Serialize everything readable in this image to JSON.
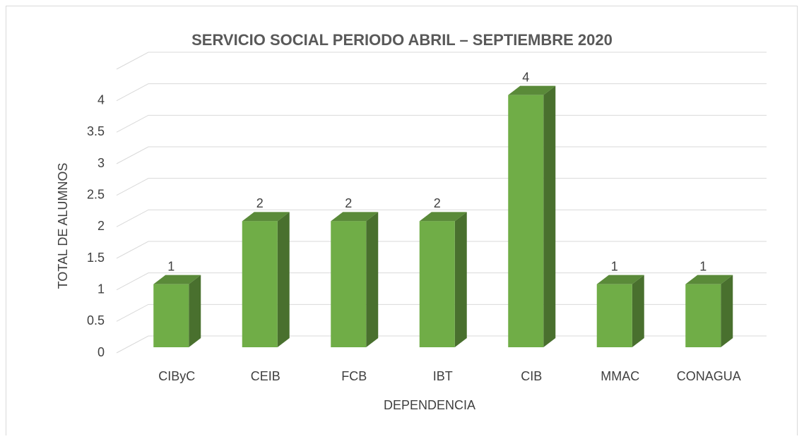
{
  "chart_data": {
    "type": "bar3d",
    "title": "SERVICIO SOCIAL PERIODO ABRIL – SEPTIEMBRE 2020",
    "x_label": "DEPENDENCIA",
    "y_label": "TOTAL DE ALUMNOS",
    "categories": [
      "CIByC",
      "CEIB",
      "FCB",
      "IBT",
      "CIB",
      "MMAC",
      "CONAGUA"
    ],
    "values": [
      1,
      2,
      2,
      2,
      4,
      1,
      1
    ],
    "color": "#70ad47",
    "ylim": [
      0,
      4.5
    ],
    "yticks": [
      0,
      0.5,
      1,
      1.5,
      2,
      2.5,
      3,
      3.5,
      4
    ],
    "grid": true
  }
}
